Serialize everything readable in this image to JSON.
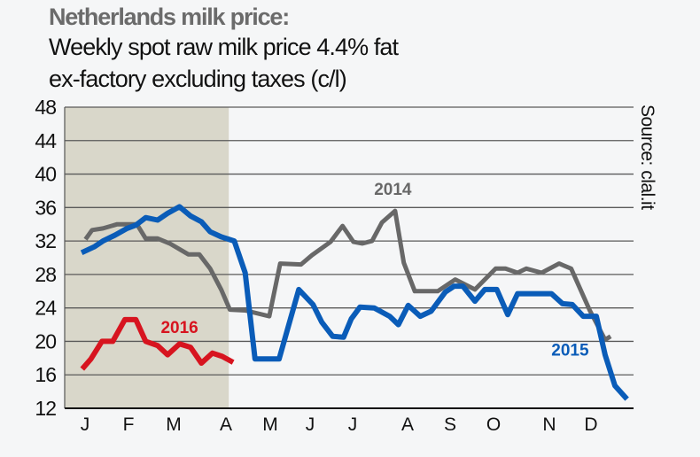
{
  "header": {
    "title": "Netherlands milk price:",
    "subtitle_line1": "Weekly spot raw milk price 4.4% fat",
    "subtitle_line2": "ex-factory excluding taxes (c/l)"
  },
  "source": "Source: clal.it",
  "chart_data": {
    "type": "line",
    "title": "Netherlands milk price: Weekly spot raw milk price 4.4% fat ex-factory excluding taxes (c/l)",
    "xlabel": "",
    "ylabel": "",
    "x_unit": "week of year",
    "xlim": [
      0,
      52
    ],
    "ylim": [
      12,
      48
    ],
    "yticks": [
      12,
      16,
      20,
      24,
      28,
      32,
      36,
      40,
      44,
      48
    ],
    "xtick_labels": [
      "J",
      "F",
      "M",
      "A",
      "M",
      "J",
      "J",
      "A",
      "S",
      "O",
      "N",
      "D"
    ],
    "grid": true,
    "shaded_region_weeks": [
      0,
      15
    ],
    "colors": {
      "background": "#f5f6f7",
      "shade": "#d9d7ca",
      "grid": "#5a5a5a"
    },
    "series": [
      {
        "name": "2014",
        "color": "#686868",
        "points": [
          [
            1.9,
            32.2
          ],
          [
            2.5,
            33.3
          ],
          [
            3.5,
            33.5
          ],
          [
            4.8,
            34.0
          ],
          [
            5.9,
            34.0
          ],
          [
            6.6,
            34.0
          ],
          [
            7.4,
            32.3
          ],
          [
            8.5,
            32.3
          ],
          [
            9.6,
            31.7
          ],
          [
            11.3,
            30.4
          ],
          [
            12.3,
            30.4
          ],
          [
            13.3,
            28.7
          ],
          [
            14.3,
            26.2
          ],
          [
            15.1,
            23.8
          ],
          [
            16.5,
            23.7
          ],
          [
            18.7,
            23.0
          ],
          [
            19.7,
            29.3
          ],
          [
            21.6,
            29.2
          ],
          [
            22.6,
            30.3
          ],
          [
            24.3,
            31.9
          ],
          [
            25.4,
            33.8
          ],
          [
            26.4,
            31.9
          ],
          [
            27.2,
            31.7
          ],
          [
            28.1,
            32.0
          ],
          [
            29.0,
            34.2
          ],
          [
            30.2,
            35.6
          ],
          [
            31.0,
            29.4
          ],
          [
            32.0,
            26.0
          ],
          [
            34.1,
            26.0
          ],
          [
            35.7,
            27.4
          ],
          [
            37.5,
            26.2
          ],
          [
            39.4,
            28.7
          ],
          [
            40.3,
            28.7
          ],
          [
            41.4,
            28.2
          ],
          [
            42.2,
            28.7
          ],
          [
            43.6,
            28.2
          ],
          [
            45.2,
            29.3
          ],
          [
            46.3,
            28.7
          ],
          [
            48.0,
            23.7
          ],
          [
            49.4,
            20.2
          ],
          [
            49.9,
            20.6
          ]
        ],
        "label_at": [
          30.0,
          37.5
        ]
      },
      {
        "name": "2015",
        "color": "#0a5cb8",
        "points": [
          [
            1.55,
            30.6
          ],
          [
            2.7,
            31.3
          ],
          [
            3.5,
            32.0
          ],
          [
            4.6,
            32.7
          ],
          [
            5.7,
            33.5
          ],
          [
            6.5,
            33.9
          ],
          [
            7.4,
            34.8
          ],
          [
            8.5,
            34.5
          ],
          [
            9.4,
            35.3
          ],
          [
            10.5,
            36.1
          ],
          [
            11.5,
            35.0
          ],
          [
            12.5,
            34.3
          ],
          [
            13.3,
            33.1
          ],
          [
            14.3,
            32.5
          ],
          [
            15.5,
            32.0
          ],
          [
            16.5,
            28.2
          ],
          [
            17.4,
            17.9
          ],
          [
            19.6,
            17.9
          ],
          [
            21.4,
            26.2
          ],
          [
            22.7,
            24.4
          ],
          [
            23.5,
            22.3
          ],
          [
            24.5,
            20.6
          ],
          [
            25.5,
            20.5
          ],
          [
            26.2,
            22.7
          ],
          [
            27.0,
            24.1
          ],
          [
            28.3,
            24.0
          ],
          [
            29.7,
            23.0
          ],
          [
            30.5,
            22.0
          ],
          [
            31.4,
            24.3
          ],
          [
            32.5,
            23.0
          ],
          [
            33.5,
            23.6
          ],
          [
            34.8,
            25.9
          ],
          [
            35.6,
            26.6
          ],
          [
            36.4,
            26.6
          ],
          [
            37.5,
            24.8
          ],
          [
            38.4,
            26.2
          ],
          [
            39.5,
            26.2
          ],
          [
            40.5,
            23.2
          ],
          [
            41.4,
            25.7
          ],
          [
            42.4,
            25.7
          ],
          [
            44.5,
            25.7
          ],
          [
            45.5,
            24.5
          ],
          [
            46.4,
            24.4
          ],
          [
            47.4,
            23.0
          ],
          [
            48.6,
            23.0
          ],
          [
            49.4,
            18.4
          ],
          [
            50.3,
            14.7
          ],
          [
            51.4,
            13.1
          ]
        ],
        "label_at": [
          46.2,
          18.3
        ]
      },
      {
        "name": "2016",
        "color": "#d7141f",
        "points": [
          [
            1.6,
            16.7
          ],
          [
            2.4,
            17.9
          ],
          [
            3.4,
            20.0
          ],
          [
            4.4,
            20.0
          ],
          [
            5.5,
            22.6
          ],
          [
            6.5,
            22.6
          ],
          [
            7.4,
            20.0
          ],
          [
            8.5,
            19.5
          ],
          [
            9.4,
            18.4
          ],
          [
            10.5,
            19.7
          ],
          [
            11.5,
            19.3
          ],
          [
            12.5,
            17.4
          ],
          [
            13.5,
            18.6
          ],
          [
            14.4,
            18.2
          ],
          [
            15.4,
            17.5
          ]
        ],
        "label_at": [
          10.5,
          21.0
        ]
      }
    ]
  }
}
